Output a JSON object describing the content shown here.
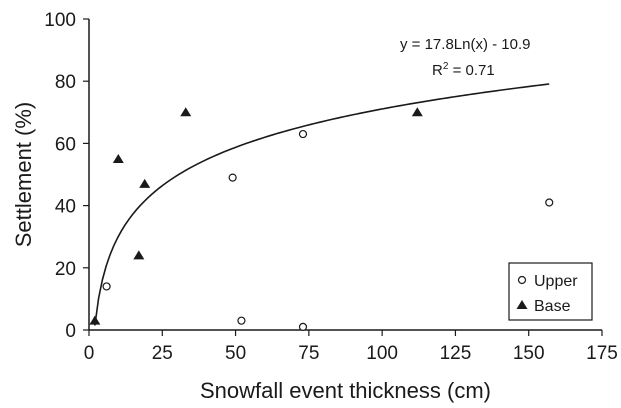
{
  "chart_data": {
    "type": "scatter",
    "title": "",
    "xlabel": "Snowfall event thickness (cm)",
    "ylabel": "Settlement (%)",
    "xlim": [
      0,
      175
    ],
    "ylim": [
      0,
      100
    ],
    "xticks": [
      0,
      25,
      50,
      75,
      100,
      125,
      150,
      175
    ],
    "yticks": [
      0,
      20,
      40,
      60,
      80,
      100
    ],
    "grid": false,
    "legend_position": "bottom-right",
    "series": [
      {
        "name": "Upper",
        "marker": "open-circle",
        "color": "#1a1a1a",
        "points": [
          {
            "x": 6,
            "y": 14
          },
          {
            "x": 49,
            "y": 49
          },
          {
            "x": 52,
            "y": 3
          },
          {
            "x": 73,
            "y": 63
          },
          {
            "x": 73,
            "y": 1
          },
          {
            "x": 157,
            "y": 41
          }
        ]
      },
      {
        "name": "Base",
        "marker": "filled-triangle",
        "color": "#1a1a1a",
        "points": [
          {
            "x": 2,
            "y": 3
          },
          {
            "x": 10,
            "y": 55
          },
          {
            "x": 17,
            "y": 24
          },
          {
            "x": 19,
            "y": 47
          },
          {
            "x": 33,
            "y": 70
          },
          {
            "x": 112,
            "y": 70
          }
        ]
      }
    ],
    "trendline": {
      "type": "logarithmic",
      "a": 17.8,
      "b": -10.9,
      "x_from": 2,
      "x_to": 157
    },
    "annotation": {
      "equation": "y = 17.8Ln(x) - 10.9",
      "r2_prefix": "R",
      "r2_sup": "2",
      "r2_rest": " = 0.71"
    }
  }
}
